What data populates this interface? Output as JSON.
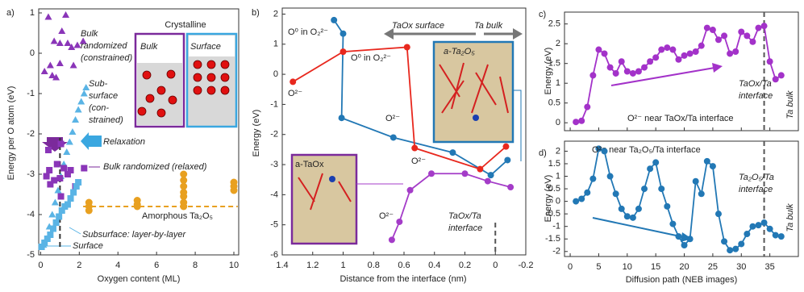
{
  "chart_data": [
    {
      "type": "scatter",
      "panel_label": "a)",
      "xlabel": "Oxygen content (ML)",
      "ylabel": "Energy per O atom (eV)",
      "xlim": [
        -0.1,
        10.25
      ],
      "xticks": [
        0,
        2,
        4,
        6,
        8,
        10
      ],
      "ylim": [
        -5,
        1.1
      ],
      "yticks": [
        -5,
        -4,
        -3,
        -2,
        -1,
        0,
        1
      ],
      "series": [
        {
          "label": [
            "Bulk",
            "randomized",
            "(constrained)"
          ],
          "color": "#8a35b8",
          "marker": "triangle",
          "x": [
            0.4,
            1.3,
            1.1,
            0.7,
            1.0,
            1.4,
            1.6,
            1.9,
            2.2,
            0.5,
            1.0,
            1.7,
            0.6,
            0.8,
            0.2
          ],
          "y": [
            0.9,
            0.95,
            0.55,
            0.3,
            0.25,
            0.25,
            0.15,
            0.2,
            0.3,
            -0.3,
            -0.25,
            -0.3,
            -0.55,
            -0.6,
            -0.45
          ]
        },
        {
          "label": [
            "Sub-",
            "surface",
            "(con-",
            "strained)"
          ],
          "color": "#5ab4e5",
          "marker": "triangle",
          "x": [
            0.15,
            0.3,
            0.45,
            0.6,
            0.75,
            0.9,
            1.05,
            1.2,
            1.35,
            1.5,
            1.65,
            1.8,
            1.95,
            2.1,
            2.25,
            2.35
          ],
          "y": [
            -4.75,
            -4.6,
            -4.3,
            -4.0,
            -3.7,
            -3.4,
            -3.05,
            -2.75,
            -2.45,
            -2.2,
            -1.95,
            -1.65,
            -1.4,
            -1.2,
            -1.0,
            -0.85
          ]
        },
        {
          "label": [
            "Bulk randomized (relaxed)"
          ],
          "color": "#8a35b8",
          "marker": "square",
          "x": [
            0.4,
            1.05,
            0.45,
            0.85,
            1.2,
            1.55,
            2.25,
            0.3,
            0.7,
            1.0,
            1.4,
            1.8,
            0.5,
            1.05
          ],
          "y": [
            -2.4,
            -2.25,
            -2.9,
            -2.75,
            -2.85,
            -2.9,
            -2.85,
            -3.05,
            -3.15,
            -3.1,
            -3.0,
            -3.3,
            -3.25,
            -3.55
          ]
        },
        {
          "label": [
            "Subsurface: layer-by-layer"
          ],
          "color": "#5ab4e5",
          "marker": "square",
          "x": [
            0.05,
            0.2,
            0.35,
            0.5,
            0.65,
            0.8,
            0.95,
            1.1,
            1.25,
            1.4,
            1.55,
            1.7,
            1.85,
            1.95
          ],
          "y": [
            -4.8,
            -4.7,
            -4.6,
            -4.5,
            -4.35,
            -4.2,
            -4.05,
            -3.9,
            -3.8,
            -3.75,
            -3.6,
            -3.45,
            -3.3,
            -3.2
          ]
        },
        {
          "label": [
            "Amorphous Ta₂O₅"
          ],
          "color": "#e8a020",
          "marker": "circle",
          "x": [
            2.5,
            2.5,
            2.5,
            5.0,
            5.0,
            5.0,
            7.4,
            7.4,
            7.4,
            7.4,
            7.4,
            7.4,
            7.4,
            10,
            10,
            10
          ],
          "y": [
            -3.7,
            -3.8,
            -3.9,
            -3.65,
            -3.75,
            -3.8,
            -3.0,
            -3.15,
            -3.3,
            -3.45,
            -3.55,
            -3.7,
            -3.8,
            -3.2,
            -3.3,
            -3.4
          ]
        }
      ],
      "reference_lines": [
        {
          "axis": "y",
          "value": -3.8,
          "color": "#e8a020"
        },
        {
          "axis": "x",
          "value": 1,
          "color": "#333333"
        }
      ],
      "annotations": [
        "Crystalline",
        "Bulk",
        "Surface",
        "Relaxation",
        "Surface"
      ]
    },
    {
      "type": "line",
      "panel_label": "b)",
      "xlabel": "Distance from the interface (nm)",
      "ylabel": "Energy (eV)",
      "xlim": [
        1.4,
        -0.2
      ],
      "xticks": [
        1.4,
        1.2,
        1,
        0.8,
        0.6,
        0.4,
        0.2,
        0,
        -0.2
      ],
      "ylim": [
        -6,
        2.2
      ],
      "yticks": [
        -6,
        -5,
        -4,
        -3,
        -2,
        -1,
        0,
        1,
        2
      ],
      "series": [
        {
          "color": "#2278b5",
          "x": [
            1.06,
            1.0,
            1.01,
            0.67,
            0.28,
            0.03,
            -0.08
          ],
          "y": [
            1.8,
            1.35,
            -1.45,
            -2.1,
            -2.6,
            -3.35,
            -2.85
          ]
        },
        {
          "color": "#e8281e",
          "x": [
            1.33,
            1.0,
            0.58,
            0.53,
            0.1,
            -0.07
          ],
          "y": [
            -0.25,
            0.75,
            0.9,
            -2.45,
            -3.15,
            -2.4
          ]
        },
        {
          "color": "#a43cc8",
          "x": [
            0.68,
            0.63,
            0.56,
            0.42,
            0.2,
            0.05,
            -0.1
          ],
          "y": [
            -5.5,
            -4.9,
            -3.85,
            -3.3,
            -3.3,
            -3.55,
            -3.75
          ]
        }
      ],
      "reference_lines": [
        {
          "axis": "x",
          "value": 0,
          "color": "#555555"
        }
      ],
      "annotations": [
        "O⁰ in O₂²⁻",
        "O²⁻",
        "O⁰ in O₂²⁻",
        "O²⁻",
        "O²⁻",
        "O²⁻",
        "TaOx surface",
        "Ta bulk",
        [
          "TaOx/Ta",
          "interface"
        ],
        "a-Ta₂O₅",
        "a-TaOx"
      ]
    },
    {
      "type": "line",
      "panel_label": "c)",
      "ylabel": "Energy (eV)",
      "show_xtick_labels": false,
      "x": [
        1,
        2,
        3,
        4,
        5,
        6,
        7,
        8,
        9,
        10,
        11,
        12,
        13,
        14,
        15,
        16,
        17,
        18,
        19,
        20,
        21,
        22,
        23,
        24,
        25,
        26,
        27,
        28,
        29,
        30,
        31,
        32,
        33,
        34,
        35,
        36,
        37
      ],
      "xlim": [
        -1,
        40
      ],
      "xticks": [
        0,
        5,
        10,
        15,
        20,
        25,
        30,
        35
      ],
      "ylim": [
        -0.2,
        2.8
      ],
      "yticks": [
        0,
        0.5,
        1,
        1.5,
        2,
        2.5
      ],
      "series": [
        {
          "color": "#a332c9",
          "values": [
            0.02,
            0.05,
            0.4,
            1.2,
            1.85,
            1.75,
            1.4,
            1.25,
            1.55,
            1.3,
            1.25,
            1.3,
            1.4,
            1.55,
            1.65,
            1.85,
            1.9,
            1.85,
            1.6,
            1.7,
            1.75,
            1.8,
            1.95,
            2.4,
            2.35,
            2.1,
            2.2,
            1.75,
            1.8,
            2.3,
            2.2,
            2.05,
            2.4,
            2.45,
            1.55,
            1.1,
            1.2
          ]
        }
      ],
      "reference_lines": [
        {
          "axis": "x",
          "value": 34,
          "color": "#555555"
        }
      ],
      "annotations": [
        "O²⁻ near TaOx/Ta interface",
        [
          "TaOx/Ta",
          "interface"
        ],
        "Ta bulk"
      ]
    },
    {
      "type": "line",
      "panel_label": "d)",
      "xlabel": "Diffusion path (NEB images)",
      "ylabel": "Energy (eV)",
      "show_xtick_labels": true,
      "x": [
        1,
        2,
        3,
        4,
        5,
        6,
        7,
        8,
        9,
        10,
        11,
        12,
        13,
        14,
        15,
        16,
        17,
        18,
        19,
        20,
        21,
        22,
        23,
        24,
        25,
        26,
        27,
        28,
        29,
        30,
        31,
        32,
        33,
        34,
        35,
        36,
        37
      ],
      "xlim": [
        -1,
        40
      ],
      "xticks": [
        0,
        5,
        10,
        15,
        20,
        25,
        30,
        35
      ],
      "ylim": [
        -2.2,
        2.4
      ],
      "yticks": [
        -2,
        -1.5,
        -1,
        -0.5,
        0,
        0.5,
        1,
        1.5,
        2
      ],
      "series": [
        {
          "color": "#2278b5",
          "values": [
            0,
            0.1,
            0.35,
            0.9,
            2.1,
            2.0,
            1.0,
            0.3,
            -0.3,
            -0.6,
            -0.65,
            -0.3,
            0.5,
            1.3,
            1.55,
            0.5,
            -0.2,
            -0.9,
            -1.4,
            -1.75,
            -1.5,
            0.8,
            0.3,
            1.6,
            1.4,
            -0.5,
            -1.6,
            -1.95,
            -1.9,
            -1.7,
            -1.3,
            -1.0,
            -0.95,
            -0.85,
            -1.1,
            -1.35,
            -1.4
          ]
        }
      ],
      "reference_lines": [
        {
          "axis": "x",
          "value": 34,
          "color": "#555555"
        }
      ],
      "annotations": [
        "O²⁻ near Ta₂O₅/Ta interface",
        [
          "Ta₂O₅/Ta",
          "interface"
        ],
        "Ta bulk"
      ]
    }
  ]
}
